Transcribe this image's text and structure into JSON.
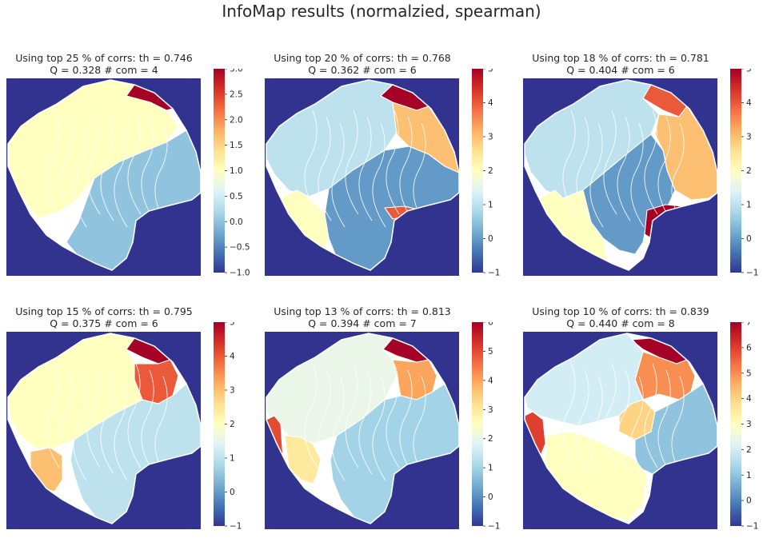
{
  "suptitle": "InfoMap results (normalzied, spearman)",
  "colors": {
    "background": "#31338f",
    "boundary": "#ffffff",
    "colormap": [
      "#313695",
      "#4575b4",
      "#74add1",
      "#abd9e9",
      "#e0f3f8",
      "#ffffbf",
      "#fee090",
      "#fdae61",
      "#f46d43",
      "#d73027",
      "#a50026"
    ]
  },
  "chart_data": [
    {
      "type": "heatmap",
      "title": "Using top 25 % of corrs: th = 0.746\nQ = 0.328  # com = 4",
      "title_line1": "Using top 25 % of corrs: th = 0.746",
      "title_line2": "Q = 0.328  # com = 4",
      "colorbar": {
        "vmin": -1.0,
        "vmax": 3.0,
        "ticks": [
          "3.0",
          "2.5",
          "2.0",
          "1.5",
          "1.0",
          "0.5",
          "0.0",
          "−0.5",
          "−1.0"
        ]
      },
      "communities": [
        {
          "id": 3,
          "region": "top-right corner"
        },
        {
          "id": 1,
          "region": "upper-left and center"
        },
        {
          "id": 0,
          "region": "lower-right"
        },
        {
          "id": 2,
          "region": "bottom-left edge"
        },
        {
          "id": -1,
          "region": "background"
        }
      ]
    },
    {
      "type": "heatmap",
      "title": "Using top 20 % of corrs: th = 0.768\nQ = 0.362  # com = 6",
      "title_line1": "Using top 20 % of corrs: th = 0.768",
      "title_line2": "Q = 0.362  # com = 6",
      "colorbar": {
        "vmin": -1,
        "vmax": 5,
        "ticks": [
          "5",
          "4",
          "3",
          "2",
          "1",
          "0",
          "−1"
        ]
      },
      "communities": [
        {
          "id": 5,
          "region": "top-right corner"
        },
        {
          "id": 1,
          "region": "upper-left"
        },
        {
          "id": 0,
          "region": "lower-right"
        },
        {
          "id": 3,
          "region": "right"
        },
        {
          "id": 2,
          "region": "lower-left"
        },
        {
          "id": 4,
          "region": "strip"
        },
        {
          "id": -1,
          "region": "background"
        }
      ]
    },
    {
      "type": "heatmap",
      "title": "Using top 18 % of corrs: th = 0.781\nQ = 0.404  # com = 6",
      "title_line1": "Using top 18 % of corrs: th = 0.781",
      "title_line2": "Q = 0.404  # com = 6",
      "colorbar": {
        "vmin": -1,
        "vmax": 5,
        "ticks": [
          "5",
          "4",
          "3",
          "2",
          "1",
          "0",
          "−1"
        ]
      },
      "communities": [
        {
          "id": 4,
          "region": "top-right"
        },
        {
          "id": 1,
          "region": "upper-left"
        },
        {
          "id": 0,
          "region": "lower-center"
        },
        {
          "id": 3,
          "region": "right"
        },
        {
          "id": 2,
          "region": "lower-left"
        },
        {
          "id": 5,
          "region": "strip"
        },
        {
          "id": -1,
          "region": "background"
        }
      ]
    },
    {
      "type": "heatmap",
      "title": "Using top 15 % of corrs: th = 0.795\nQ = 0.375  # com = 6",
      "title_line1": "Using top 15 % of corrs: th = 0.795",
      "title_line2": "Q = 0.375  # com = 6",
      "colorbar": {
        "vmin": -1,
        "vmax": 5,
        "ticks": [
          "5",
          "4",
          "3",
          "2",
          "1",
          "0",
          "−1"
        ]
      },
      "communities": [
        {
          "id": 5,
          "region": "top-right corner"
        },
        {
          "id": 4,
          "region": "right upper"
        },
        {
          "id": 2,
          "region": "upper-left"
        },
        {
          "id": 1,
          "region": "lower-right"
        },
        {
          "id": 3,
          "region": "left lower"
        },
        {
          "id": -1,
          "region": "background"
        }
      ]
    },
    {
      "type": "heatmap",
      "title": "Using top 13 % of corrs: th = 0.813\nQ = 0.394  # com = 7",
      "title_line1": "Using top 13 % of corrs: th = 0.813",
      "title_line2": "Q = 0.394  # com = 7",
      "colorbar": {
        "vmin": -1,
        "vmax": 6,
        "ticks": [
          "6",
          "5",
          "4",
          "3",
          "2",
          "1",
          "0",
          "−1"
        ]
      },
      "communities": [
        {
          "id": 6,
          "region": "top-right corner"
        },
        {
          "id": 2,
          "region": "upper-left"
        },
        {
          "id": 1,
          "region": "lower-right"
        },
        {
          "id": 4,
          "region": "right"
        },
        {
          "id": 5,
          "region": "left edge"
        },
        {
          "id": 3,
          "region": "lower-left"
        },
        {
          "id": -1,
          "region": "background"
        }
      ]
    },
    {
      "type": "heatmap",
      "title": "Using top 10 % of corrs: th = 0.839\nQ = 0.440  # com = 8",
      "title_line1": "Using top 10 % of corrs: th = 0.839",
      "title_line2": "Q = 0.440  # com = 8",
      "colorbar": {
        "vmin": -1,
        "vmax": 7,
        "ticks": [
          "7",
          "6",
          "5",
          "4",
          "3",
          "2",
          "1",
          "0",
          "−1"
        ]
      },
      "communities": [
        {
          "id": 7,
          "region": "top-right corner"
        },
        {
          "id": 2,
          "region": "upper-left"
        },
        {
          "id": 1,
          "region": "lower-right"
        },
        {
          "id": 5,
          "region": "right upper"
        },
        {
          "id": 4,
          "region": "center"
        },
        {
          "id": 6,
          "region": "left edge"
        },
        {
          "id": 3,
          "region": "bottom"
        },
        {
          "id": -1,
          "region": "background"
        }
      ]
    }
  ]
}
